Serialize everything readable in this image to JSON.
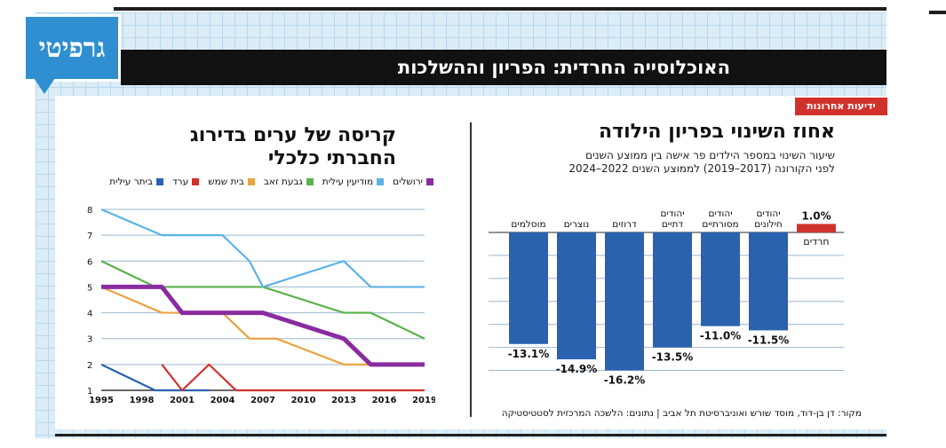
{
  "brand": {
    "logo": "גרפיטי",
    "tag": "ידיעות אחרונות"
  },
  "header": {
    "title": "האוכלוסייה החרדית: הפריון וההשלכות"
  },
  "colors": {
    "accent_blue": "#2f8fd0",
    "bar_blue": "#2a62b0",
    "red": "#d1312b",
    "grid_bg": "#dcedf8"
  },
  "chart_data": [
    {
      "type": "bar",
      "title": "אחוז השינוי בפריון הילודה",
      "subtitle_line1": "שיעור השינוי במספר הילדים פר אישה בין ממוצע השנים",
      "subtitle_line2": "לפני הקורונה (2017–2019) לממוצע השנים 2022–2024",
      "categories": [
        "יהודים חילונים",
        "יהודים מסורתיים",
        "יהודים דתיים",
        "דרוזים",
        "נוצרים",
        "מוסלמים",
        "חרדים"
      ],
      "values": [
        -11.5,
        -11.0,
        -13.5,
        -16.2,
        -14.9,
        -13.1,
        1.0
      ],
      "value_labels": [
        "-11.5%",
        "-11.0%",
        "-13.5%",
        "-16.2%",
        "-14.9%",
        "-13.1%",
        "1.0%"
      ],
      "ylim": [
        -17,
        1.5
      ],
      "grid": true
    },
    {
      "type": "line",
      "title": "קריסה של ערים בדירוג החברתי כלכלי",
      "x": [
        1995,
        1998,
        2001,
        2004,
        2007,
        2010,
        2013,
        2016,
        2019
      ],
      "xlim": [
        1995,
        2019
      ],
      "ylim": [
        1,
        8
      ],
      "yticks": [
        1,
        2,
        3,
        4,
        5,
        6,
        7,
        8
      ],
      "grid": true,
      "legend_position": "top",
      "series": [
        {
          "name": "ירושלים",
          "color": "#8a2ca0",
          "points": [
            [
              1995,
              5
            ],
            [
              1999.5,
              5
            ],
            [
              2001,
              4
            ],
            [
              2007,
              4
            ],
            [
              2013,
              3
            ],
            [
              2015,
              2
            ],
            [
              2019,
              2
            ]
          ]
        },
        {
          "name": "מודיעין עילית",
          "color": "#5cb3e6",
          "points": [
            [
              1995,
              8
            ],
            [
              1999.5,
              7
            ],
            [
              2004,
              7
            ],
            [
              2006,
              6
            ],
            [
              2007,
              5
            ],
            [
              2013,
              6
            ],
            [
              2015,
              5
            ],
            [
              2019,
              5
            ]
          ]
        },
        {
          "name": "גבעת זאב",
          "color": "#5bb24a",
          "points": [
            [
              1995,
              6
            ],
            [
              1999,
              5
            ],
            [
              2007,
              5
            ],
            [
              2013,
              4
            ],
            [
              2015,
              4
            ],
            [
              2019,
              3
            ]
          ]
        },
        {
          "name": "בית שמש",
          "color": "#e9a342",
          "points": [
            [
              1995,
              5
            ],
            [
              1999.5,
              4
            ],
            [
              2004,
              4
            ],
            [
              2006,
              3
            ],
            [
              2008,
              3
            ],
            [
              2013,
              2
            ],
            [
              2019,
              2
            ]
          ]
        },
        {
          "name": "ערד",
          "color": "#d1312b",
          "points": [
            [
              1999.5,
              2
            ],
            [
              2001,
              1
            ],
            [
              2003,
              2
            ],
            [
              2005,
              1
            ],
            [
              2019,
              1
            ]
          ]
        },
        {
          "name": "ביתר עילית",
          "color": "#2a62b0",
          "points": [
            [
              1995,
              2
            ],
            [
              1999,
              1
            ],
            [
              2001,
              1
            ],
            [
              2003,
              1
            ]
          ]
        }
      ]
    }
  ],
  "source": "מקור: דן בן-דוד, מוסד שורש ואוניברסיטת תל אביב | נתונים: הלשכה המרכזית לסטטיסטיקה"
}
